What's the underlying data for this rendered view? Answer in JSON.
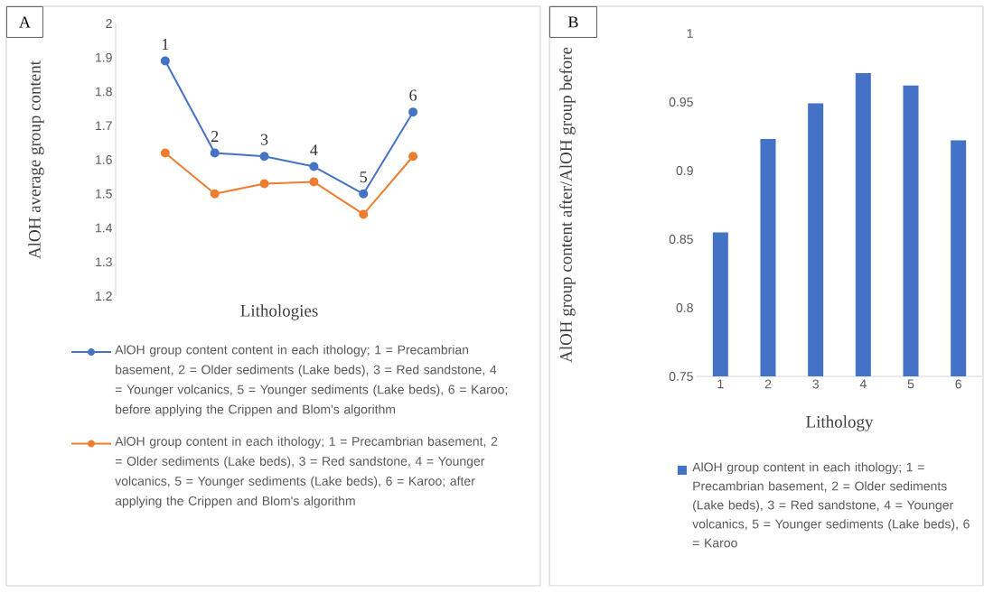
{
  "chart_data": [
    {
      "type": "line",
      "xlabel": "Lithologies",
      "ylabel": "AlOH average group content",
      "categories": [
        "1",
        "2",
        "3",
        "4",
        "5",
        "6"
      ],
      "series": [
        {
          "name": "AlOH group content content in each ithology; 1 = Precambrian basement, 2 = Older sediments (Lake beds), 3 = Red sandstone,  4 = Younger volcanics, 5 = Younger sediments (Lake beds), 6 = Karoo; before applying the Crippen and Blom's algorithm",
          "color": "#4472c4",
          "values": [
            1.89,
            1.62,
            1.61,
            1.58,
            1.5,
            1.74
          ]
        },
        {
          "name": "AlOH group content in each ithology; 1 = Precambrian basement, 2 = Older sediments (Lake beds), 3 = Red sandstone,  4 = Younger volcanics, 5 = Younger sediments (Lake beds), 6 = Karoo; after applying the Crippen and Blom's algorithm",
          "color": "#ed7d31",
          "values": [
            1.62,
            1.5,
            1.53,
            1.535,
            1.44,
            1.61
          ]
        }
      ],
      "ylim": [
        1.2,
        2
      ],
      "yticks": [
        1.2,
        1.3,
        1.4,
        1.5,
        1.6,
        1.7,
        1.8,
        1.9,
        2
      ],
      "marker": "circle",
      "line_style": "solid",
      "legend": "bottom",
      "annotations": [
        "A"
      ]
    },
    {
      "type": "bar",
      "xlabel": "Lithology",
      "ylabel": "AlOH group content after/AlOH group before",
      "categories": [
        "1",
        "2",
        "3",
        "4",
        "5",
        "6"
      ],
      "series": [
        {
          "name": "AlOH group content in each ithology; 1 = Precambrian basement, 2 = Older sediments (Lake beds), 3 = Red sandstone,  4 = Younger volcanics, 5 = Younger sediments (Lake beds), 6 = Karoo",
          "color": "#4472c4",
          "values": [
            0.855,
            0.923,
            0.949,
            0.971,
            0.962,
            0.922
          ]
        }
      ],
      "ylim": [
        0.75,
        1
      ],
      "yticks": [
        0.75,
        0.8,
        0.85,
        0.9,
        0.95,
        1
      ],
      "legend": "bottom",
      "annotations": [
        "B"
      ]
    }
  ]
}
